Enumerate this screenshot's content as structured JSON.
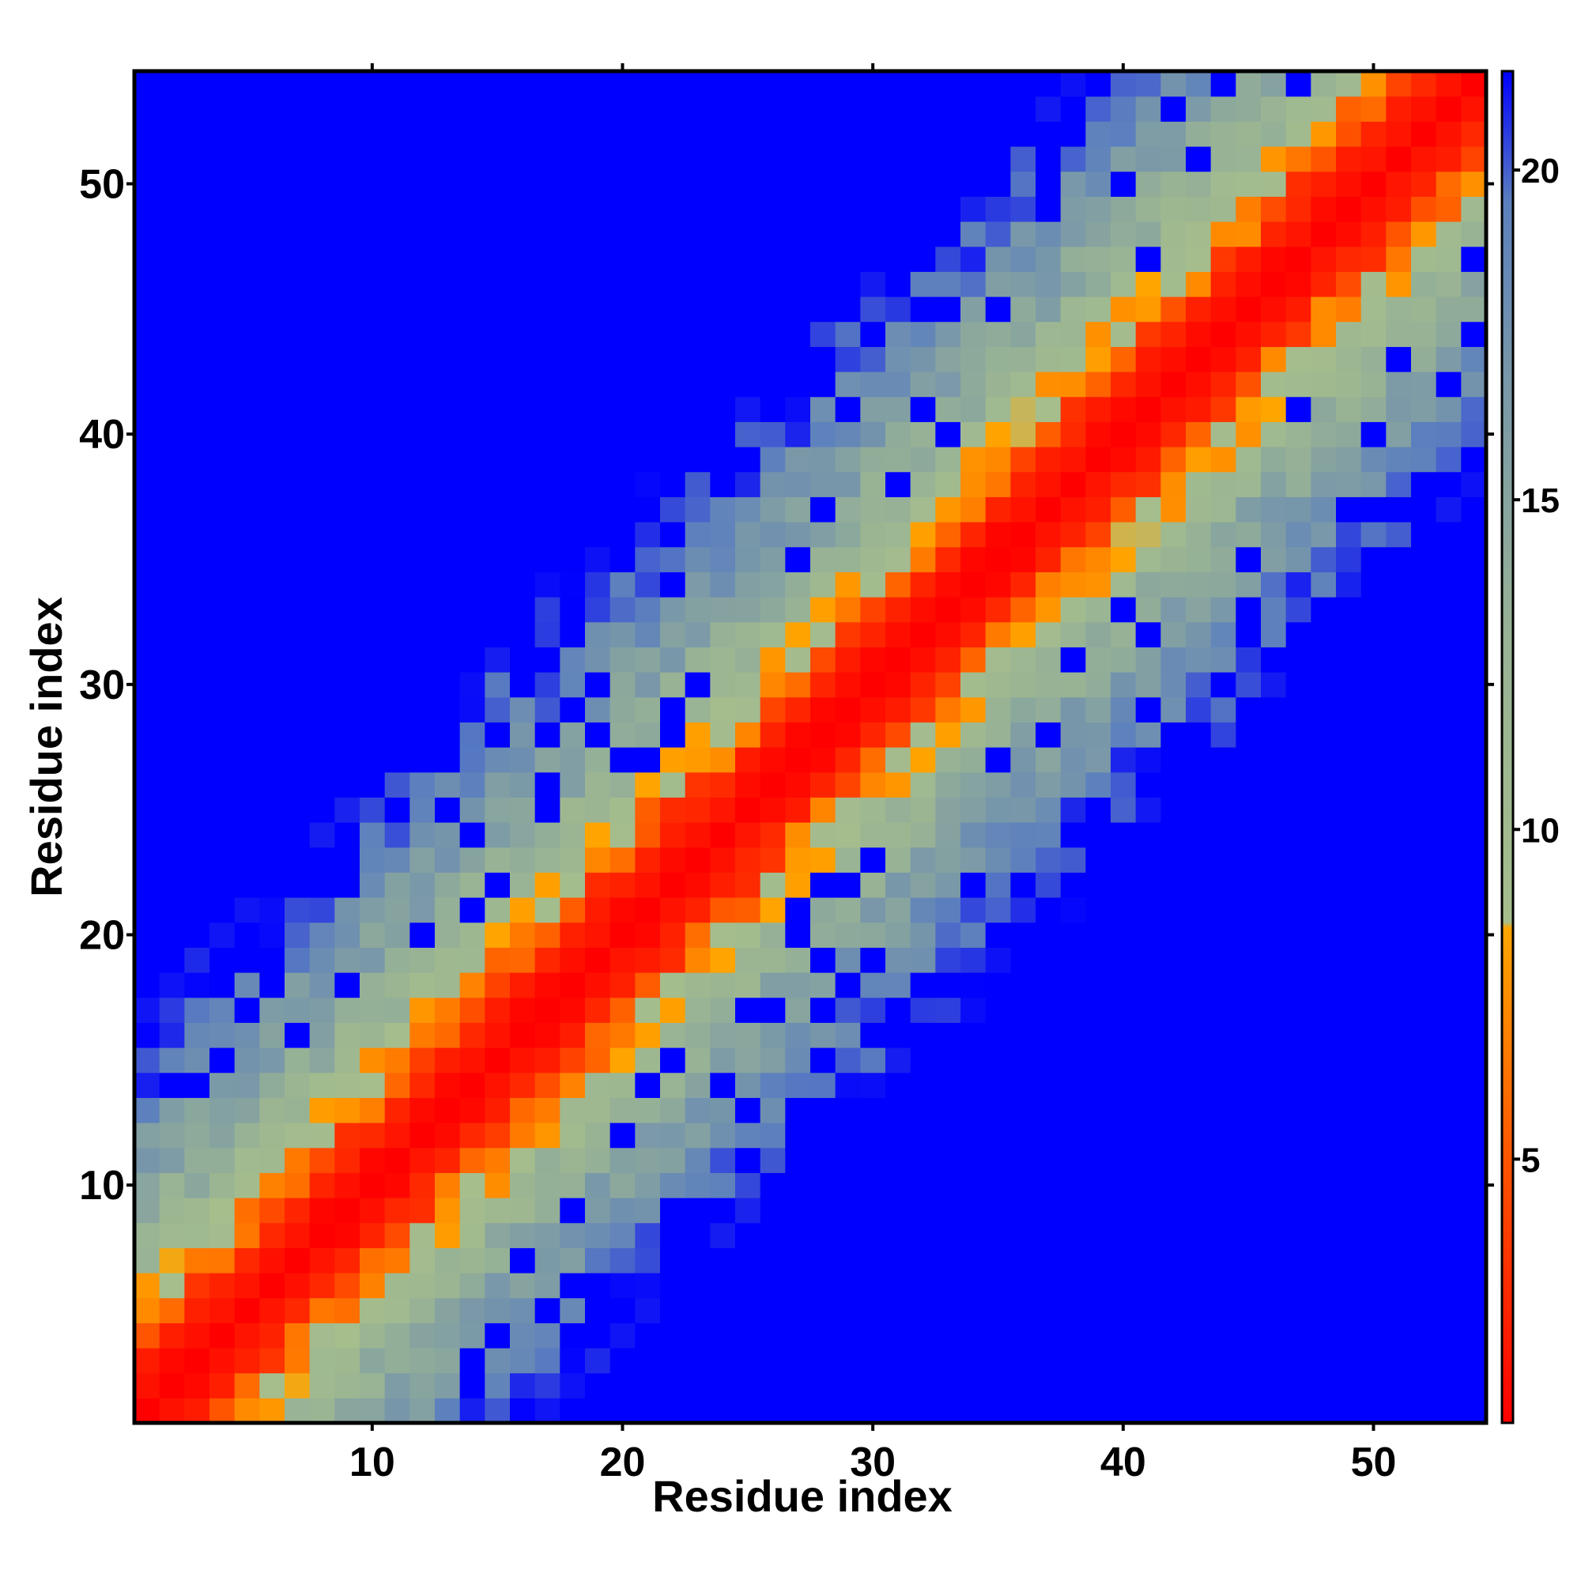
{
  "chart_data": {
    "type": "heatmap",
    "title": "",
    "xlabel": "Residue index",
    "ylabel": "Residue index",
    "n_residues": 54,
    "xlim": [
      1,
      54
    ],
    "ylim": [
      1,
      54
    ],
    "x_ticks": [
      10,
      20,
      30,
      40,
      50
    ],
    "y_ticks": [
      10,
      20,
      30,
      40,
      50
    ],
    "colorbar": {
      "range": [
        1,
        21.5
      ],
      "ticks": [
        5,
        10,
        15,
        20
      ],
      "stops": [
        {
          "value": 1,
          "color": "#FF0000"
        },
        {
          "value": 5,
          "color": "#FF5500"
        },
        {
          "value": 8.5,
          "color": "#FFA500"
        },
        {
          "value": 8.6,
          "color": "#A6BE8C"
        },
        {
          "value": 13,
          "color": "#97B295"
        },
        {
          "value": 17,
          "color": "#7796AA"
        },
        {
          "value": 19.5,
          "color": "#5C80BE"
        },
        {
          "value": 21.5,
          "color": "#0000FF"
        }
      ]
    },
    "cutoff_value": 21.5,
    "band_profile": [
      {
        "offset": 0,
        "value": 1.0
      },
      {
        "offset": 1,
        "value": 1.6
      },
      {
        "offset": 2,
        "value": 2.6
      },
      {
        "offset": 3,
        "value": 5.2
      },
      {
        "offset": 4,
        "value": 7.6
      },
      {
        "offset": 5,
        "value": 9.4
      },
      {
        "offset": 6,
        "value": 11.5
      },
      {
        "offset": 8,
        "value": 14.0
      },
      {
        "offset": 11,
        "value": 17.0
      },
      {
        "offset": 14,
        "value": 20.5
      }
    ],
    "note_cells": "symmetric distance map; cells beyond cutoff shown in blue"
  }
}
